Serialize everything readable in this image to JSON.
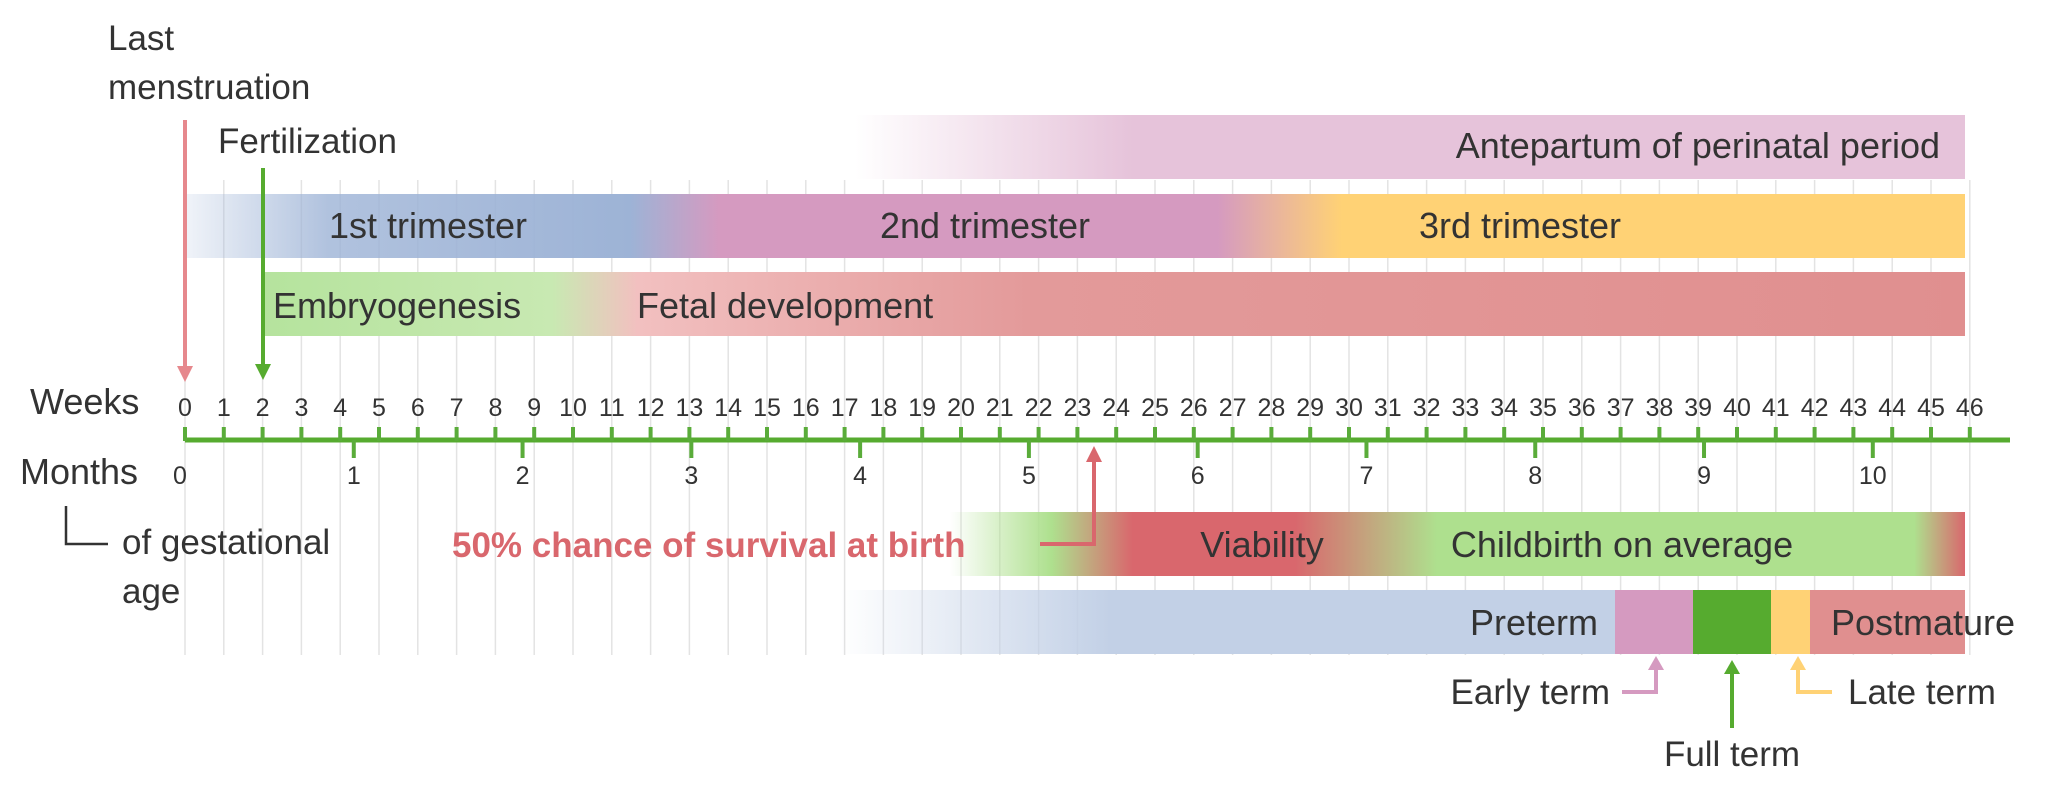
{
  "labels": {
    "last_menstruation_1": "Last",
    "last_menstruation_2": "menstruation",
    "fertilization": "Fertilization",
    "weeks": "Weeks",
    "months": "Months",
    "gestational_1": "of gestational",
    "gestational_2": "age",
    "survival": "50% chance of survival at birth",
    "early_term": "Early term",
    "full_term": "Full term",
    "late_term": "Late term"
  },
  "bars": {
    "antepartum": "Antepartum of perinatal period",
    "trimester_1": "1st trimester",
    "trimester_2": "2nd trimester",
    "trimester_3": "3rd trimester",
    "embryogenesis": "Embryogenesis",
    "fetal_development": "Fetal development",
    "viability": "Viability",
    "childbirth": "Childbirth on average",
    "preterm": "Preterm",
    "postmature": "Postmature"
  },
  "weeks": [
    "0",
    "1",
    "2",
    "3",
    "4",
    "5",
    "6",
    "7",
    "8",
    "9",
    "10",
    "11",
    "12",
    "13",
    "14",
    "15",
    "16",
    "17",
    "18",
    "19",
    "20",
    "21",
    "22",
    "23",
    "24",
    "25",
    "26",
    "27",
    "28",
    "29",
    "30",
    "31",
    "32",
    "33",
    "34",
    "35",
    "36",
    "37",
    "38",
    "39",
    "40",
    "41",
    "42",
    "43",
    "44",
    "45",
    "46"
  ],
  "months": [
    {
      "label": "0",
      "week": 0
    },
    {
      "label": "1",
      "week": 4.35
    },
    {
      "label": "2",
      "week": 8.7
    },
    {
      "label": "3",
      "week": 13.05
    },
    {
      "label": "4",
      "week": 17.4
    },
    {
      "label": "5",
      "week": 21.75
    },
    {
      "label": "6",
      "week": 26.1
    },
    {
      "label": "7",
      "week": 30.45
    },
    {
      "label": "8",
      "week": 34.8
    },
    {
      "label": "9",
      "week": 39.15
    },
    {
      "label": "10",
      "week": 43.5
    }
  ],
  "markers": {
    "last_menstruation_week": 0,
    "fertilization_week": 2,
    "survival_week": 23.5,
    "early_term_week": 38,
    "full_term_week": 40,
    "late_term_week": 42
  },
  "colors": {
    "axis": "#5aac3a",
    "antepartum": "#e6c3da",
    "trimester_1": "#9db3d6",
    "trimester_2": "#d59ac0",
    "trimester_3": "#ffd275",
    "embryogenesis": "#b5e39d",
    "fetal": "#e08f8f",
    "viability_red": "#d9676d",
    "childbirth_green": "#aee08e",
    "preterm": "#c2d0e6",
    "early_term": "#d59ac0",
    "full_term": "#56ab2f",
    "late_term": "#ffd275",
    "postmature": "#e08f8f",
    "survival_text": "#d9676d",
    "last_menstruation_arrow": "#e6888d",
    "fertilization_arrow": "#56ab2f"
  }
}
